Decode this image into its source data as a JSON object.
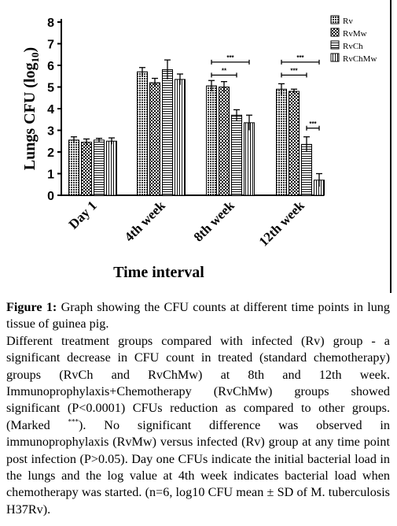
{
  "chart_data": {
    "type": "bar",
    "ylabel_main": "Lungs CFU (log",
    "ylabel_sub": "10",
    "ylabel_close": ")",
    "xlabel": "Time interval",
    "ylim": [
      0,
      8
    ],
    "yticks": [
      "0",
      "1",
      "2",
      "3",
      "4",
      "5",
      "6",
      "7",
      "8"
    ],
    "categories": [
      "Day 1",
      "4th week",
      "8th week",
      "12th week"
    ],
    "legend_position": "top-right",
    "series": [
      {
        "name": "Rv",
        "pattern": "dense-dot",
        "values": [
          2.55,
          5.7,
          5.05,
          4.9
        ],
        "errors": [
          0.15,
          0.2,
          0.25,
          0.25
        ]
      },
      {
        "name": "RvMw",
        "pattern": "checker",
        "values": [
          2.45,
          5.2,
          5.0,
          4.8
        ],
        "errors": [
          0.15,
          0.2,
          0.25,
          0.1
        ]
      },
      {
        "name": "RvCh",
        "pattern": "hlines",
        "values": [
          2.55,
          5.8,
          3.7,
          2.35
        ],
        "errors": [
          0.08,
          0.45,
          0.25,
          0.35
        ]
      },
      {
        "name": "RvChMw",
        "pattern": "vlines",
        "values": [
          2.5,
          5.35,
          3.35,
          0.7
        ],
        "errors": [
          0.15,
          0.25,
          0.35,
          0.3
        ]
      }
    ],
    "annotations": [
      {
        "group": 2,
        "from_series": 0,
        "to_series": 3,
        "level": 6.15,
        "text": "***"
      },
      {
        "group": 2,
        "from_series": 0,
        "to_series": 2,
        "level": 5.55,
        "text": "**"
      },
      {
        "group": 3,
        "from_series": 0,
        "to_series": 3,
        "level": 6.15,
        "text": "***"
      },
      {
        "group": 3,
        "from_series": 0,
        "to_series": 2,
        "level": 5.55,
        "text": "***"
      },
      {
        "group": 3,
        "from_series": 2,
        "to_series": 3,
        "level": 3.1,
        "text": "***"
      }
    ]
  },
  "caption": {
    "label": "Figure 1:",
    "title": " Graph showing the CFU counts at different time points in lung tissue of guinea pig.",
    "body_part1": "Different treatment groups compared with infected (Rv) group - a significant decrease in CFU count in treated (standard chemotherapy) groups (RvCh and RvChMw) at 8th and 12th week. Immunoprophylaxis+Chemotherapy (RvChMw) groups showed significant (P<0.0001) CFUs reduction as compared to other groups. (Marked ",
    "sup": "***",
    "body_part2": "). No significant difference was observed in immunoprophylaxis (RvMw) versus infected (Rv) group at any time point post infection (P>0.05). Day one CFUs indicate the initial bacterial load in the lungs and the log value at 4th week indicates bacterial load when chemotherapy was started. (n=6, log10 CFU mean ± SD of M. tuberculosis H37Rv)."
  }
}
